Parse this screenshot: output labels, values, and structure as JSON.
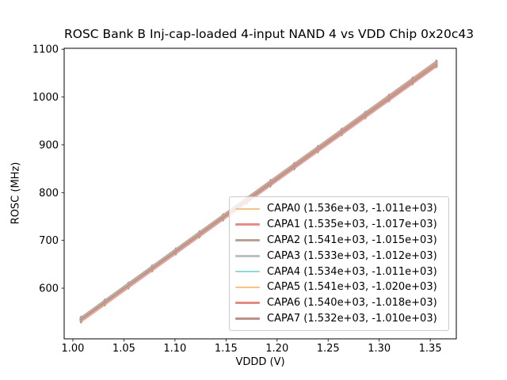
{
  "figure": {
    "title": "ROSC Bank B Inj-cap-loaded 4-input NAND 4 vs VDD Chip 0x20c43",
    "background_color": "#ffffff"
  },
  "chart_data": {
    "type": "line",
    "title": "ROSC Bank B Inj-cap-loaded 4-input NAND 4 vs VDD Chip 0x20c43",
    "xlabel": "VDDD (V)",
    "ylabel": "ROSC (MHz)",
    "xlim": [
      0.9915,
      1.3755
    ],
    "ylim": [
      494,
      1102
    ],
    "xtick_labels": [
      "1.00",
      "1.05",
      "1.10",
      "1.15",
      "1.20",
      "1.25",
      "1.30",
      "1.35"
    ],
    "xticks": [
      1.0,
      1.05,
      1.1,
      1.15,
      1.2,
      1.25,
      1.3,
      1.35
    ],
    "yticks": [
      600,
      700,
      800,
      900,
      1000,
      1100
    ],
    "grid": false,
    "legend_location": "inside lower-right of axes",
    "legend_note": "each label shows (fit slope MHz/V, fit intercept MHz)",
    "x": [
      1.008,
      1.0312,
      1.0544,
      1.0776,
      1.1008,
      1.124,
      1.1472,
      1.1704,
      1.1936,
      1.2168,
      1.24,
      1.2632,
      1.2864,
      1.3096,
      1.3328,
      1.356
    ],
    "series": [
      {
        "name": "CAPA0",
        "label": "CAPA0 (1.536e+03, -1.011e+03)",
        "fit_slope": 1536,
        "fit_intercept": -1011,
        "color": "#f7c28a",
        "marker_color": "#1f77b4",
        "values": [
          537.3,
          572.9,
          608.6,
          644.2,
          679.8,
          715.5,
          751.1,
          786.7,
          822.4,
          858.0,
          893.6,
          929.3,
          964.9,
          1000.5,
          1036.2,
          1071.8
        ]
      },
      {
        "name": "CAPA1",
        "label": "CAPA1 (1.535e+03, -1.017e+03)",
        "fit_slope": 1535,
        "fit_intercept": -1017,
        "color": "#e78c8c",
        "marker_color": "#2ca02c",
        "values": [
          530.3,
          565.9,
          601.5,
          637.1,
          672.7,
          708.3,
          744.0,
          779.6,
          815.2,
          850.8,
          886.4,
          922.0,
          957.6,
          993.2,
          1028.8,
          1064.5
        ]
      },
      {
        "name": "CAPA2",
        "label": "CAPA2 (1.541e+03, -1.015e+03)",
        "fit_slope": 1541,
        "fit_intercept": -1015,
        "color": "#bca094",
        "marker_color": "#9467bd",
        "values": [
          538.3,
          574.1,
          609.8,
          645.6,
          681.3,
          717.1,
          752.8,
          788.6,
          824.3,
          860.1,
          895.8,
          931.6,
          967.3,
          1003.1,
          1038.8,
          1074.6
        ]
      },
      {
        "name": "CAPA3",
        "label": "CAPA3 (1.533e+03, -1.012e+03)",
        "fit_slope": 1533,
        "fit_intercept": -1012,
        "color": "#bfbfbf",
        "marker_color": "#17becf",
        "values": [
          533.3,
          568.8,
          604.4,
          640.0,
          675.5,
          711.1,
          746.7,
          782.2,
          817.8,
          853.4,
          888.9,
          924.5,
          960.1,
          995.6,
          1031.2,
          1066.7
        ]
      },
      {
        "name": "CAPA4",
        "label": "CAPA4 (1.534e+03, -1.011e+03)",
        "fit_slope": 1534,
        "fit_intercept": -1011,
        "color": "#8edad6",
        "marker_color": "#1f77b4",
        "values": [
          535.3,
          570.9,
          606.5,
          642.0,
          677.6,
          713.2,
          748.8,
          784.4,
          820.0,
          855.6,
          891.2,
          926.7,
          962.3,
          997.9,
          1033.5,
          1069.1
        ]
      },
      {
        "name": "CAPA5",
        "label": "CAPA5 (1.541e+03, -1.020e+03)",
        "fit_slope": 1541,
        "fit_intercept": -1020,
        "color": "#fbc386",
        "marker_color": "#2ca02c",
        "values": [
          533.3,
          569.1,
          604.8,
          640.6,
          676.3,
          712.1,
          747.8,
          783.6,
          819.3,
          855.1,
          890.8,
          926.6,
          962.3,
          998.1,
          1033.8,
          1069.6
        ]
      },
      {
        "name": "CAPA6",
        "label": "CAPA6 (1.540e+03, -1.018e+03)",
        "fit_slope": 1540,
        "fit_intercept": -1018,
        "color": "#e28b80",
        "marker_color": "#9467bd",
        "values": [
          534.3,
          570.0,
          605.8,
          641.5,
          677.2,
          713.0,
          748.7,
          784.4,
          820.1,
          855.9,
          891.6,
          927.3,
          963.1,
          998.8,
          1034.5,
          1070.2
        ]
      },
      {
        "name": "CAPA7",
        "label": "CAPA7 (1.532e+03, -1.010e+03)",
        "fit_slope": 1532,
        "fit_intercept": -1010,
        "color": "#b89488",
        "marker_color": "#17becf",
        "values": [
          534.3,
          569.8,
          605.3,
          640.9,
          676.4,
          712.0,
          747.5,
          783.1,
          818.6,
          854.1,
          889.7,
          925.2,
          960.8,
          996.3,
          1031.9,
          1067.4
        ]
      }
    ]
  }
}
